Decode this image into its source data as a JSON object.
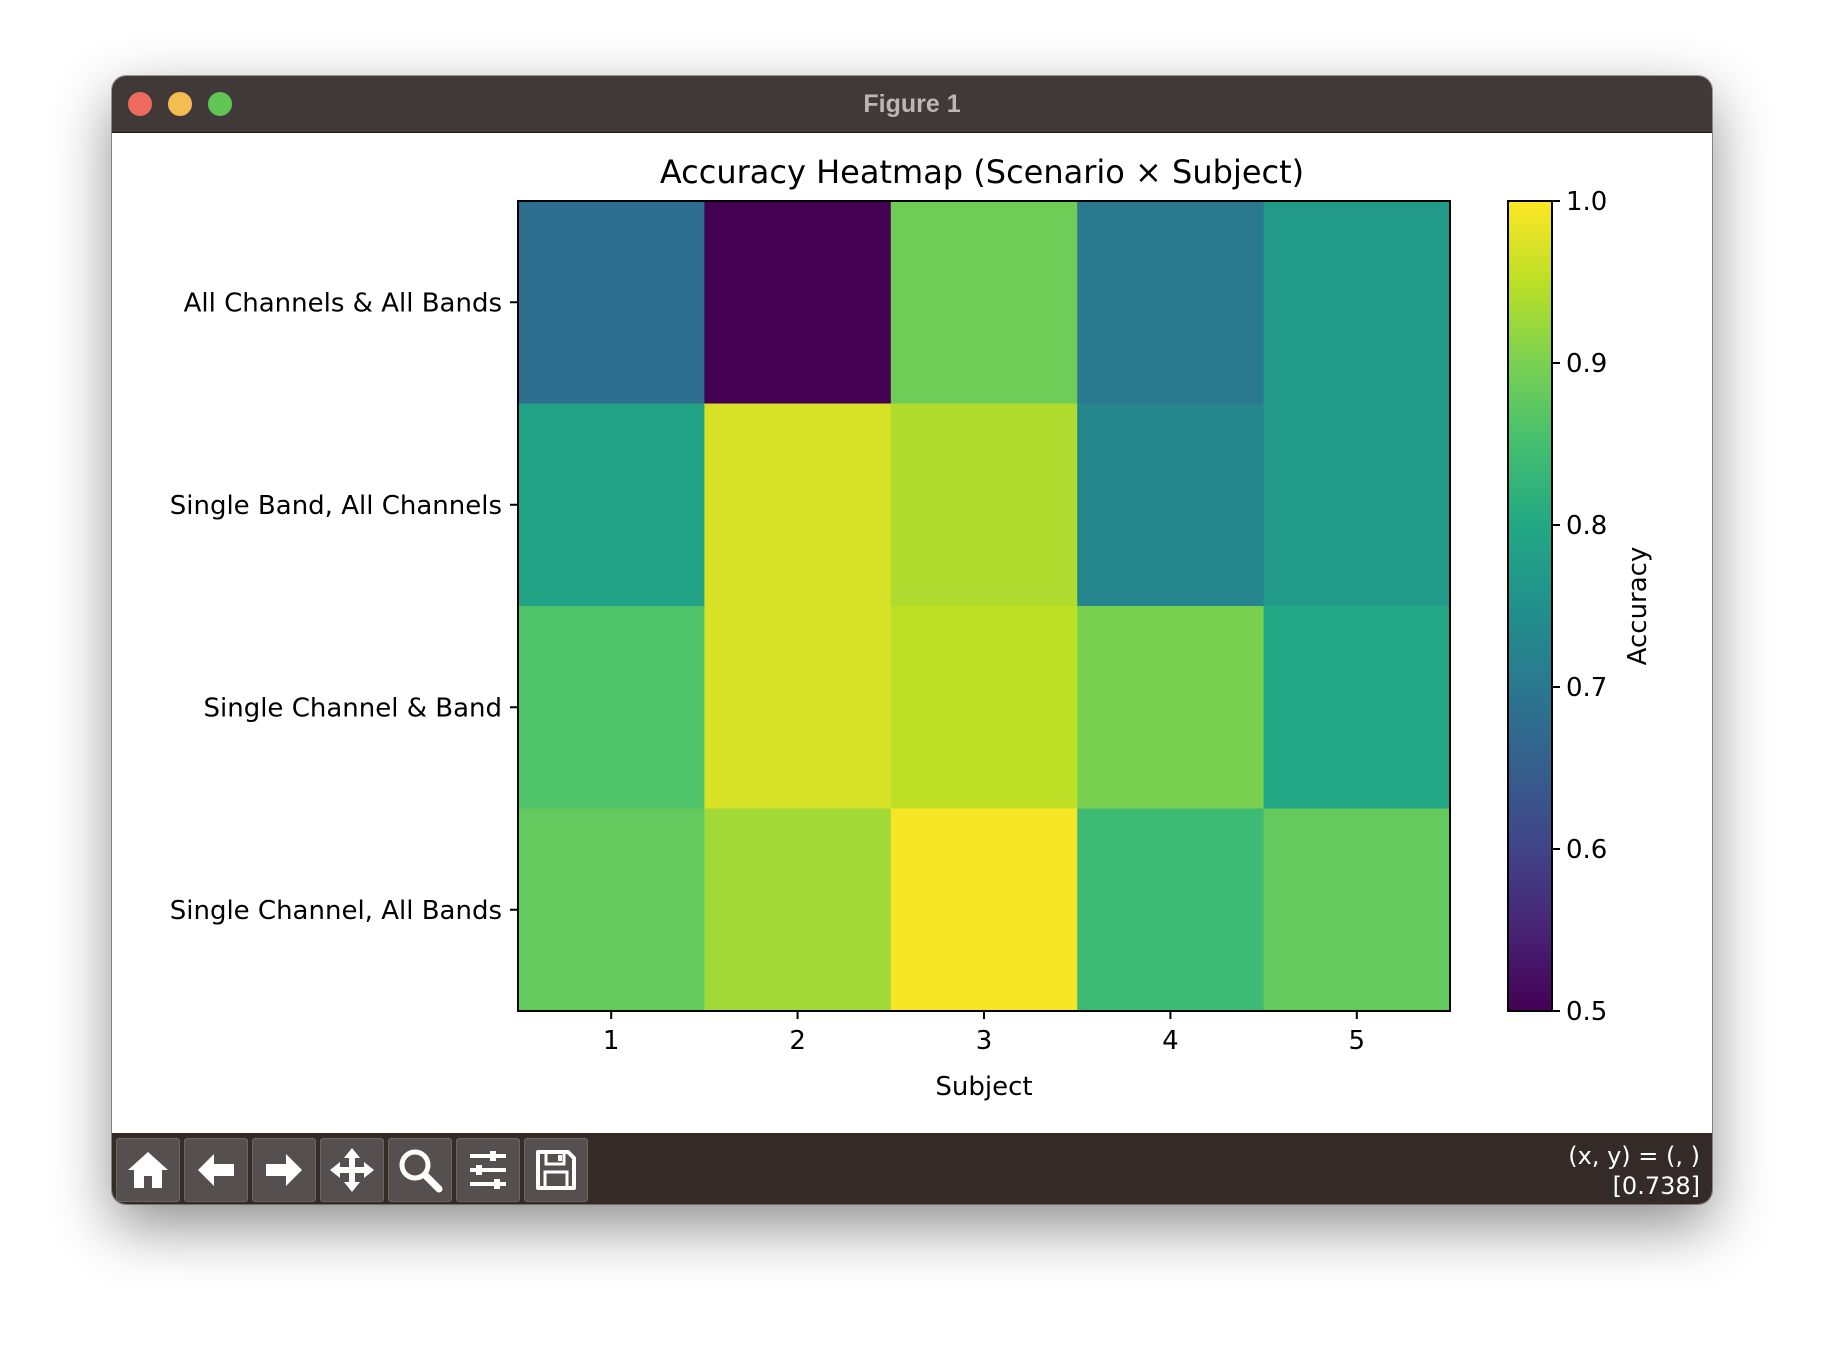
{
  "window": {
    "title": "Figure 1"
  },
  "toolbar": {
    "buttons": [
      {
        "name": "home-button",
        "icon": "home-icon"
      },
      {
        "name": "back-button",
        "icon": "arrow-left-icon"
      },
      {
        "name": "forward-button",
        "icon": "arrow-right-icon"
      },
      {
        "name": "pan-button",
        "icon": "move-icon"
      },
      {
        "name": "zoom-button",
        "icon": "magnifier-icon"
      },
      {
        "name": "configure-subplots-button",
        "icon": "sliders-icon"
      },
      {
        "name": "save-button",
        "icon": "floppy-disk-icon"
      }
    ],
    "coords_line1": "(x, y) = (, )",
    "coords_line2": "[0.738]"
  },
  "chart_data": {
    "type": "heatmap",
    "title": "Accuracy Heatmap (Scenario × Subject)",
    "xlabel": "Subject",
    "ylabel": "",
    "x_categories": [
      "1",
      "2",
      "3",
      "4",
      "5"
    ],
    "y_categories": [
      "All Channels & All Bands",
      "Single Band, All Channels",
      "Single Channel & Band",
      "Single Channel, All Bands"
    ],
    "values": [
      [
        0.68,
        0.5,
        0.89,
        0.7,
        0.77
      ],
      [
        0.79,
        0.97,
        0.94,
        0.73,
        0.77
      ],
      [
        0.86,
        0.97,
        0.95,
        0.9,
        0.8
      ],
      [
        0.88,
        0.93,
        0.995,
        0.84,
        0.88
      ]
    ],
    "colorbar": {
      "label": "Accuracy",
      "min": 0.5,
      "max": 1.0,
      "ticks": [
        "0.5",
        "0.6",
        "0.7",
        "0.8",
        "0.9",
        "1.0"
      ],
      "colormap": "viridis"
    }
  }
}
